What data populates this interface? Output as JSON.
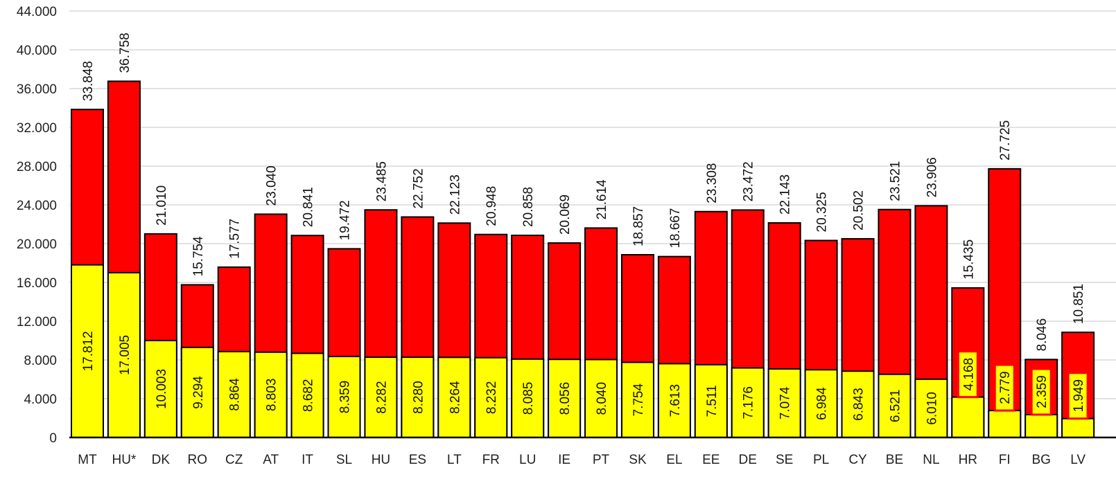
{
  "chart_data": {
    "type": "bar",
    "stacked": "overlay",
    "categories": [
      "MT",
      "HU*",
      "DK",
      "RO",
      "CZ",
      "AT",
      "IT",
      "SL",
      "HU",
      "ES",
      "LT",
      "FR",
      "LU",
      "IE",
      "PT",
      "SK",
      "EL",
      "EE",
      "DE",
      "SE",
      "PL",
      "CY",
      "BE",
      "NL",
      "HR",
      "FI",
      "BG",
      "LV"
    ],
    "series": [
      {
        "values": [
          33848,
          36758,
          21010,
          15754,
          17577,
          23040,
          20841,
          19472,
          23485,
          22752,
          22123,
          20948,
          20858,
          20069,
          21614,
          18857,
          18667,
          23308,
          23472,
          22143,
          20325,
          20502,
          23521,
          23906,
          15435,
          27725,
          8046,
          10851
        ],
        "labels": [
          "33.848",
          "36.758",
          "21.010",
          "15.754",
          "17.577",
          "23.040",
          "20.841",
          "19.472",
          "23.485",
          "22.752",
          "22.123",
          "20.948",
          "20.858",
          "20.069",
          "21.614",
          "18.857",
          "18.667",
          "23.308",
          "23.472",
          "22.143",
          "20.325",
          "20.502",
          "23.521",
          "23.906",
          "15.435",
          "27.725",
          "8.046",
          "10.851"
        ],
        "color": "#ff0000"
      },
      {
        "values": [
          17812,
          17005,
          10003,
          9294,
          8864,
          8803,
          8682,
          8359,
          8282,
          8280,
          8264,
          8232,
          8085,
          8056,
          8040,
          7754,
          7613,
          7511,
          7176,
          7074,
          6984,
          6843,
          6521,
          6010,
          4168,
          2779,
          2359,
          1949
        ],
        "labels": [
          "17.812",
          "17.005",
          "10.003",
          "9.294",
          "8.864",
          "8.803",
          "8.682",
          "8.359",
          "8.282",
          "8.280",
          "8.264",
          "8.232",
          "8.085",
          "8.056",
          "8.040",
          "7.754",
          "7.613",
          "7.511",
          "7.176",
          "7.074",
          "6.984",
          "6.843",
          "6.521",
          "6.010",
          "4.168",
          "2.779",
          "2.359",
          "1.949"
        ],
        "color": "#ffff00"
      }
    ],
    "yticks": [
      "0",
      "4.000",
      "8.000",
      "12.000",
      "16.000",
      "20.000",
      "24.000",
      "28.000",
      "32.000",
      "36.000",
      "40.000",
      "44.000"
    ],
    "ylim": [
      0,
      44000
    ],
    "grid": true,
    "title": "",
    "xlabel": "",
    "ylabel": ""
  }
}
